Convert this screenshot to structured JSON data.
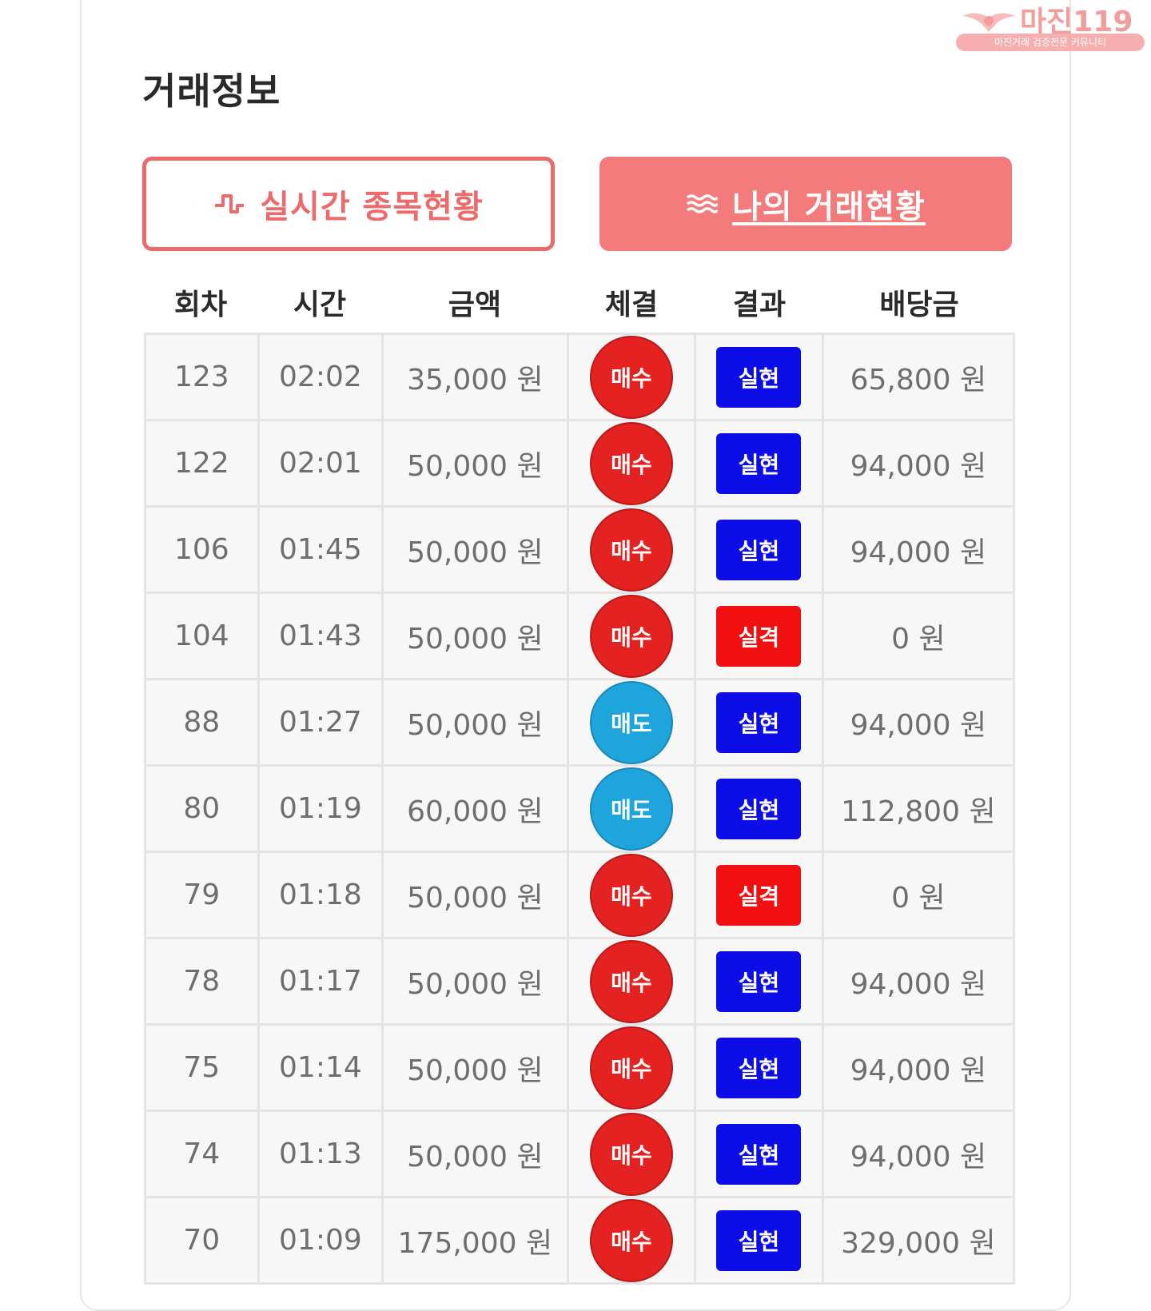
{
  "title": "거래정보",
  "watermark": {
    "brand": "마진119",
    "tagline": "마진거래 검증전문 커뮤니티"
  },
  "tabs": {
    "realtime": {
      "label": "실시간 종목현황",
      "icon": "pulse-icon"
    },
    "mine": {
      "label": "나의 거래현황",
      "icon": "waves-icon"
    }
  },
  "columns": [
    "회차",
    "시간",
    "금액",
    "체결",
    "결과",
    "배당금"
  ],
  "colors": {
    "buy": "#e52222",
    "sell": "#1ea6dc",
    "win": "#0d0de8",
    "lose": "#f20f0f",
    "accent": "#f47b7b"
  },
  "rows": [
    {
      "round": "123",
      "time": "02:02",
      "amount": "35,000 원",
      "fill": "매수",
      "fill_type": "buy",
      "result": "실현",
      "result_type": "win",
      "payout": "65,800 원"
    },
    {
      "round": "122",
      "time": "02:01",
      "amount": "50,000 원",
      "fill": "매수",
      "fill_type": "buy",
      "result": "실현",
      "result_type": "win",
      "payout": "94,000 원"
    },
    {
      "round": "106",
      "time": "01:45",
      "amount": "50,000 원",
      "fill": "매수",
      "fill_type": "buy",
      "result": "실현",
      "result_type": "win",
      "payout": "94,000 원"
    },
    {
      "round": "104",
      "time": "01:43",
      "amount": "50,000 원",
      "fill": "매수",
      "fill_type": "buy",
      "result": "실격",
      "result_type": "lose",
      "payout": "0 원"
    },
    {
      "round": "88",
      "time": "01:27",
      "amount": "50,000 원",
      "fill": "매도",
      "fill_type": "sell",
      "result": "실현",
      "result_type": "win",
      "payout": "94,000 원"
    },
    {
      "round": "80",
      "time": "01:19",
      "amount": "60,000 원",
      "fill": "매도",
      "fill_type": "sell",
      "result": "실현",
      "result_type": "win",
      "payout": "112,800 원"
    },
    {
      "round": "79",
      "time": "01:18",
      "amount": "50,000 원",
      "fill": "매수",
      "fill_type": "buy",
      "result": "실격",
      "result_type": "lose",
      "payout": "0 원"
    },
    {
      "round": "78",
      "time": "01:17",
      "amount": "50,000 원",
      "fill": "매수",
      "fill_type": "buy",
      "result": "실현",
      "result_type": "win",
      "payout": "94,000 원"
    },
    {
      "round": "75",
      "time": "01:14",
      "amount": "50,000 원",
      "fill": "매수",
      "fill_type": "buy",
      "result": "실현",
      "result_type": "win",
      "payout": "94,000 원"
    },
    {
      "round": "74",
      "time": "01:13",
      "amount": "50,000 원",
      "fill": "매수",
      "fill_type": "buy",
      "result": "실현",
      "result_type": "win",
      "payout": "94,000 원"
    },
    {
      "round": "70",
      "time": "01:09",
      "amount": "175,000 원",
      "fill": "매수",
      "fill_type": "buy",
      "result": "실현",
      "result_type": "win",
      "payout": "329,000 원"
    }
  ]
}
